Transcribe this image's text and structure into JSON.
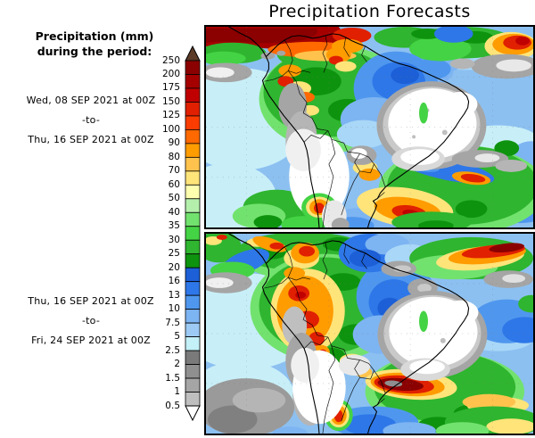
{
  "title": "Precipitation Forecasts",
  "sidebar": {
    "heading": {
      "line1": "Precipitation (mm)",
      "line2": "during the period:"
    },
    "period1": {
      "start": "Wed, 08 SEP 2021 at 00Z",
      "separator": "-to-",
      "end": "Thu, 16 SEP 2021 at 00Z"
    },
    "period2": {
      "start": "Thu, 16 SEP 2021 at 00Z",
      "separator": "-to-",
      "end": "Fri, 24 SEP 2021 at 00Z"
    }
  },
  "colorbar": {
    "units": "mm",
    "tick_labels": [
      "250",
      "200",
      "175",
      "150",
      "125",
      "100",
      "90",
      "80",
      "70",
      "60",
      "50",
      "40",
      "35",
      "30",
      "25",
      "20",
      "16",
      "13",
      "10",
      "7.5",
      "5",
      "2.5",
      "2",
      "1.5",
      "1",
      "0.5"
    ],
    "segment_colors": [
      "#8B0000",
      "#A50000",
      "#C00000",
      "#E02000",
      "#FA3C00",
      "#FF6900",
      "#FF9C00",
      "#FFC34D",
      "#FFE47A",
      "#FFFFB0",
      "#B4F0AC",
      "#72E26E",
      "#44D344",
      "#2FB52F",
      "#0E930E",
      "#1C5FD6",
      "#2E77E8",
      "#4F97EE",
      "#7DB4F2",
      "#9CCAF4",
      "#C4F0F8",
      "#7A7A7A",
      "#8F8F8F",
      "#A5A5A5",
      "#BFBFBF"
    ],
    "overflow_arrow_color": "#5C3B28",
    "underflow_arrow_color": "#FFFFFF"
  }
}
